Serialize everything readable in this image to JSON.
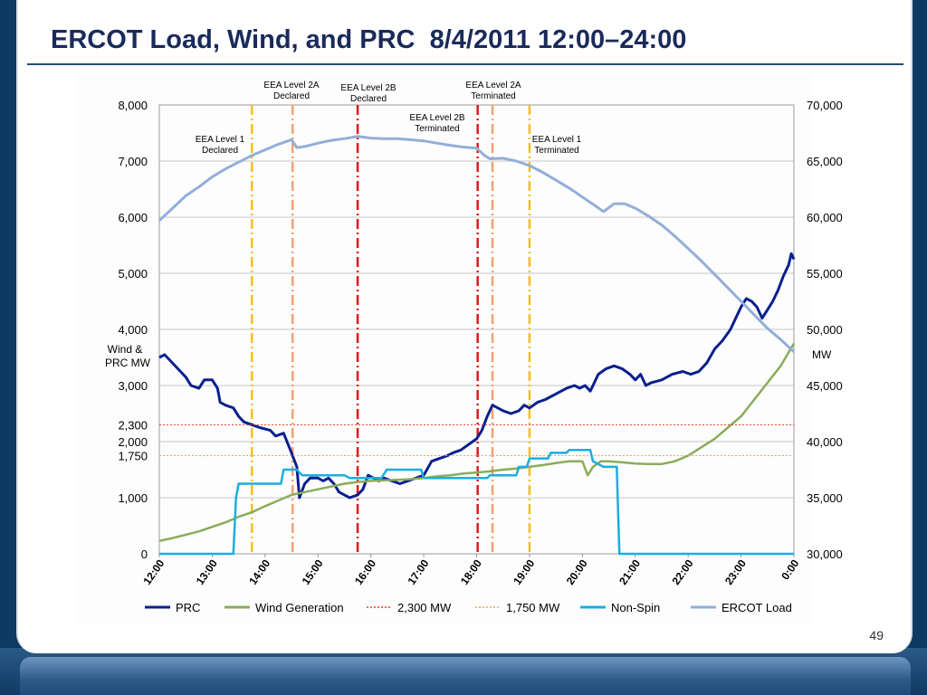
{
  "slide": {
    "title": "ERCOT Load, Wind, and PRC  8/4/2011 12:00–24:00",
    "page_number": "49"
  },
  "chart_data": {
    "type": "line",
    "x_ticks": [
      "12:00",
      "13:00",
      "14:00",
      "15:00",
      "16:00",
      "17:00",
      "18:00",
      "19:00",
      "20:00",
      "21:00",
      "22:00",
      "23:00",
      "0:00"
    ],
    "xlim": [
      12,
      24
    ],
    "left_axis": {
      "label": "Wind & PRC MW",
      "ticks": [
        "8,000",
        "7,000",
        "6,000",
        "5,000",
        "4,000",
        "3,000",
        "2,300",
        "2,000",
        "1,750",
        "1,000",
        "0"
      ],
      "ylim": [
        0,
        8000
      ]
    },
    "right_axis": {
      "label": "MW",
      "ticks": [
        "70,000",
        "65,000",
        "60,000",
        "55,000",
        "50,000",
        "45,000",
        "40,000",
        "35,000",
        "30,000"
      ],
      "ylim": [
        30000,
        70000
      ]
    },
    "grid": true,
    "legend_position": "bottom",
    "series": [
      {
        "name": "PRC",
        "axis": "left",
        "color": "#0a1f8f",
        "style": "solid",
        "width": 3,
        "points": [
          [
            12.0,
            3500
          ],
          [
            12.1,
            3550
          ],
          [
            12.2,
            3450
          ],
          [
            12.35,
            3300
          ],
          [
            12.5,
            3150
          ],
          [
            12.6,
            3000
          ],
          [
            12.75,
            2950
          ],
          [
            12.85,
            3100
          ],
          [
            13.0,
            3100
          ],
          [
            13.1,
            2950
          ],
          [
            13.15,
            2700
          ],
          [
            13.25,
            2650
          ],
          [
            13.4,
            2600
          ],
          [
            13.5,
            2450
          ],
          [
            13.6,
            2350
          ],
          [
            13.75,
            2300
          ],
          [
            13.9,
            2250
          ],
          [
            14.1,
            2200
          ],
          [
            14.2,
            2100
          ],
          [
            14.35,
            2150
          ],
          [
            14.5,
            1800
          ],
          [
            14.6,
            1550
          ],
          [
            14.65,
            1000
          ],
          [
            14.75,
            1250
          ],
          [
            14.85,
            1350
          ],
          [
            15.0,
            1350
          ],
          [
            15.1,
            1300
          ],
          [
            15.2,
            1350
          ],
          [
            15.3,
            1250
          ],
          [
            15.4,
            1100
          ],
          [
            15.5,
            1050
          ],
          [
            15.6,
            1000
          ],
          [
            15.75,
            1050
          ],
          [
            15.85,
            1150
          ],
          [
            15.95,
            1400
          ],
          [
            16.05,
            1350
          ],
          [
            16.15,
            1300
          ],
          [
            16.25,
            1350
          ],
          [
            16.4,
            1300
          ],
          [
            16.55,
            1250
          ],
          [
            16.7,
            1300
          ],
          [
            16.85,
            1350
          ],
          [
            17.0,
            1400
          ],
          [
            17.15,
            1650
          ],
          [
            17.3,
            1700
          ],
          [
            17.45,
            1750
          ],
          [
            17.55,
            1800
          ],
          [
            17.7,
            1850
          ],
          [
            17.85,
            1950
          ],
          [
            18.0,
            2050
          ],
          [
            18.1,
            2200
          ],
          [
            18.2,
            2450
          ],
          [
            18.3,
            2650
          ],
          [
            18.4,
            2600
          ],
          [
            18.5,
            2550
          ],
          [
            18.65,
            2500
          ],
          [
            18.8,
            2550
          ],
          [
            18.9,
            2650
          ],
          [
            19.0,
            2600
          ],
          [
            19.15,
            2700
          ],
          [
            19.3,
            2750
          ],
          [
            19.5,
            2850
          ],
          [
            19.7,
            2950
          ],
          [
            19.85,
            3000
          ],
          [
            19.95,
            2950
          ],
          [
            20.05,
            3000
          ],
          [
            20.15,
            2900
          ],
          [
            20.3,
            3200
          ],
          [
            20.45,
            3300
          ],
          [
            20.6,
            3350
          ],
          [
            20.75,
            3300
          ],
          [
            20.9,
            3200
          ],
          [
            21.0,
            3100
          ],
          [
            21.1,
            3200
          ],
          [
            21.2,
            3000
          ],
          [
            21.3,
            3050
          ],
          [
            21.5,
            3100
          ],
          [
            21.7,
            3200
          ],
          [
            21.9,
            3250
          ],
          [
            22.05,
            3200
          ],
          [
            22.2,
            3250
          ],
          [
            22.35,
            3400
          ],
          [
            22.5,
            3650
          ],
          [
            22.65,
            3800
          ],
          [
            22.8,
            4000
          ],
          [
            22.9,
            4200
          ],
          [
            23.0,
            4400
          ],
          [
            23.1,
            4550
          ],
          [
            23.2,
            4500
          ],
          [
            23.3,
            4400
          ],
          [
            23.4,
            4200
          ],
          [
            23.5,
            4350
          ],
          [
            23.6,
            4500
          ],
          [
            23.7,
            4700
          ],
          [
            23.8,
            4950
          ],
          [
            23.9,
            5150
          ],
          [
            23.95,
            5350
          ],
          [
            24.0,
            5250
          ]
        ]
      },
      {
        "name": "Wind Generation",
        "axis": "left",
        "color": "#8aac5a",
        "style": "solid",
        "width": 2.5,
        "points": [
          [
            12.0,
            230
          ],
          [
            12.25,
            280
          ],
          [
            12.5,
            340
          ],
          [
            12.75,
            400
          ],
          [
            13.0,
            480
          ],
          [
            13.25,
            560
          ],
          [
            13.5,
            660
          ],
          [
            13.75,
            740
          ],
          [
            14.0,
            850
          ],
          [
            14.25,
            950
          ],
          [
            14.5,
            1050
          ],
          [
            14.75,
            1100
          ],
          [
            15.0,
            1150
          ],
          [
            15.25,
            1200
          ],
          [
            15.5,
            1250
          ],
          [
            15.75,
            1280
          ],
          [
            16.0,
            1300
          ],
          [
            16.25,
            1310
          ],
          [
            16.5,
            1320
          ],
          [
            16.75,
            1330
          ],
          [
            17.0,
            1350
          ],
          [
            17.25,
            1380
          ],
          [
            17.5,
            1400
          ],
          [
            17.75,
            1430
          ],
          [
            18.0,
            1450
          ],
          [
            18.25,
            1470
          ],
          [
            18.5,
            1500
          ],
          [
            18.75,
            1520
          ],
          [
            19.0,
            1550
          ],
          [
            19.25,
            1580
          ],
          [
            19.5,
            1620
          ],
          [
            19.75,
            1650
          ],
          [
            20.0,
            1650
          ],
          [
            20.1,
            1400
          ],
          [
            20.2,
            1550
          ],
          [
            20.35,
            1650
          ],
          [
            20.5,
            1650
          ],
          [
            20.75,
            1630
          ],
          [
            21.0,
            1610
          ],
          [
            21.25,
            1600
          ],
          [
            21.5,
            1600
          ],
          [
            21.75,
            1650
          ],
          [
            22.0,
            1750
          ],
          [
            22.25,
            1900
          ],
          [
            22.5,
            2050
          ],
          [
            22.75,
            2250
          ],
          [
            23.0,
            2450
          ],
          [
            23.25,
            2750
          ],
          [
            23.5,
            3050
          ],
          [
            23.75,
            3350
          ],
          [
            24.0,
            3750
          ]
        ]
      },
      {
        "name": "2,300 MW",
        "axis": "left",
        "color": "#e04020",
        "style": "dotted",
        "width": 1,
        "points": [
          [
            12,
            2300
          ],
          [
            24,
            2300
          ]
        ]
      },
      {
        "name": "1,750 MW",
        "axis": "left",
        "color": "#f0a060",
        "style": "dotted",
        "width": 1,
        "points": [
          [
            12,
            1750
          ],
          [
            24,
            1750
          ]
        ]
      },
      {
        "name": "Non-Spin",
        "axis": "left",
        "color": "#1aaee0",
        "style": "solid",
        "width": 2.5,
        "points": [
          [
            12.0,
            0
          ],
          [
            13.4,
            0
          ],
          [
            13.45,
            1000
          ],
          [
            13.5,
            1250
          ],
          [
            14.3,
            1250
          ],
          [
            14.35,
            1500
          ],
          [
            14.6,
            1500
          ],
          [
            14.7,
            1400
          ],
          [
            15.5,
            1400
          ],
          [
            15.6,
            1350
          ],
          [
            16.2,
            1350
          ],
          [
            16.3,
            1500
          ],
          [
            16.95,
            1500
          ],
          [
            17.0,
            1350
          ],
          [
            18.2,
            1350
          ],
          [
            18.25,
            1400
          ],
          [
            18.75,
            1400
          ],
          [
            18.8,
            1550
          ],
          [
            18.95,
            1550
          ],
          [
            19.0,
            1700
          ],
          [
            19.35,
            1700
          ],
          [
            19.4,
            1800
          ],
          [
            19.7,
            1800
          ],
          [
            19.75,
            1850
          ],
          [
            20.15,
            1850
          ],
          [
            20.2,
            1650
          ],
          [
            20.4,
            1550
          ],
          [
            20.6,
            1550
          ],
          [
            20.65,
            1550
          ],
          [
            20.7,
            0
          ],
          [
            24.0,
            0
          ]
        ]
      },
      {
        "name": "ERCOT Load",
        "axis": "right",
        "color": "#93aed8",
        "style": "solid",
        "width": 3,
        "points": [
          [
            12.0,
            59700
          ],
          [
            12.25,
            60800
          ],
          [
            12.5,
            61900
          ],
          [
            12.75,
            62700
          ],
          [
            13.0,
            63600
          ],
          [
            13.25,
            64300
          ],
          [
            13.5,
            64900
          ],
          [
            13.75,
            65500
          ],
          [
            14.0,
            66000
          ],
          [
            14.25,
            66500
          ],
          [
            14.5,
            66900
          ],
          [
            14.6,
            66200
          ],
          [
            14.75,
            66300
          ],
          [
            15.0,
            66600
          ],
          [
            15.25,
            66850
          ],
          [
            15.5,
            67000
          ],
          [
            15.75,
            67200
          ],
          [
            16.0,
            67050
          ],
          [
            16.25,
            67000
          ],
          [
            16.5,
            67000
          ],
          [
            16.75,
            66900
          ],
          [
            17.0,
            66800
          ],
          [
            17.25,
            66600
          ],
          [
            17.5,
            66400
          ],
          [
            17.75,
            66250
          ],
          [
            18.0,
            66150
          ],
          [
            18.15,
            65500
          ],
          [
            18.25,
            65200
          ],
          [
            18.5,
            65250
          ],
          [
            18.75,
            65000
          ],
          [
            19.0,
            64600
          ],
          [
            19.25,
            64000
          ],
          [
            19.5,
            63300
          ],
          [
            19.75,
            62600
          ],
          [
            20.0,
            61800
          ],
          [
            20.25,
            61000
          ],
          [
            20.4,
            60500
          ],
          [
            20.6,
            61200
          ],
          [
            20.8,
            61200
          ],
          [
            21.0,
            60800
          ],
          [
            21.25,
            60100
          ],
          [
            21.5,
            59300
          ],
          [
            21.75,
            58300
          ],
          [
            22.0,
            57200
          ],
          [
            22.25,
            56100
          ],
          [
            22.5,
            54900
          ],
          [
            22.75,
            53700
          ],
          [
            23.0,
            52500
          ],
          [
            23.25,
            51300
          ],
          [
            23.5,
            50100
          ],
          [
            23.75,
            49100
          ],
          [
            24.0,
            48000
          ]
        ]
      }
    ],
    "vertical_markers": [
      {
        "x": 13.75,
        "color": "#f4c020",
        "label": [
          "EEA Level 1",
          "Declared"
        ]
      },
      {
        "x": 14.52,
        "color": "#f4a070",
        "label": [
          "EEA Level 2A",
          "Declared"
        ]
      },
      {
        "x": 15.75,
        "color": "#dd1a1a",
        "label": [
          "EEA Level 2B",
          "Declared"
        ]
      },
      {
        "x": 18.02,
        "color": "#dd1a1a",
        "label": [
          "EEA Level 2B",
          "Terminated"
        ]
      },
      {
        "x": 18.3,
        "color": "#f4a070",
        "label": [
          "EEA Level 2A",
          "Terminated"
        ]
      },
      {
        "x": 19.0,
        "color": "#f4c020",
        "label": [
          "EEA Level 1",
          "Terminated"
        ]
      }
    ]
  }
}
